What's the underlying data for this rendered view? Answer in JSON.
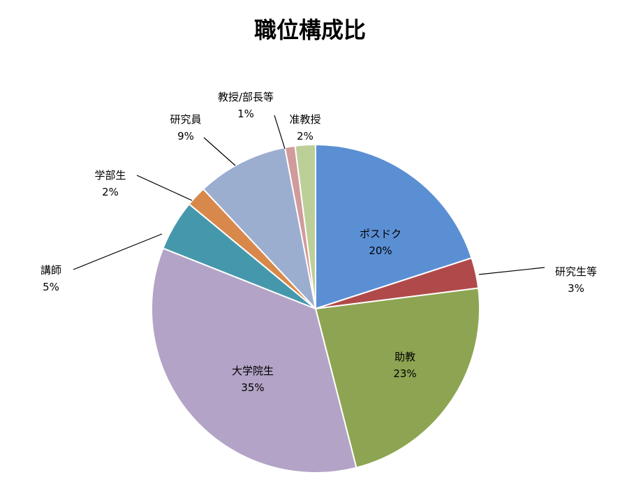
{
  "chart_data": {
    "type": "pie",
    "title": "職位構成比",
    "slices": [
      {
        "name": "ポスドク",
        "value": 20,
        "label": "20%",
        "color": "#5B8FD4"
      },
      {
        "name": "研究生等",
        "value": 3,
        "label": "3%",
        "color": "#B04A4A"
      },
      {
        "name": "助教",
        "value": 23,
        "label": "23%",
        "color": "#8DA552"
      },
      {
        "name": "大学院生",
        "value": 35,
        "label": "35%",
        "color": "#B3A3C6"
      },
      {
        "name": "講師",
        "value": 5,
        "label": "5%",
        "color": "#4598AC"
      },
      {
        "name": "学部生",
        "value": 2,
        "label": "2%",
        "color": "#D9884C"
      },
      {
        "name": "研究員",
        "value": 9,
        "label": "9%",
        "color": "#9BAED0"
      },
      {
        "name": "教授/部長等",
        "value": 1,
        "label": "1%",
        "color": "#D29B9B"
      },
      {
        "name": "准教授",
        "value": 2,
        "label": "2%",
        "color": "#BCCF98"
      }
    ]
  }
}
